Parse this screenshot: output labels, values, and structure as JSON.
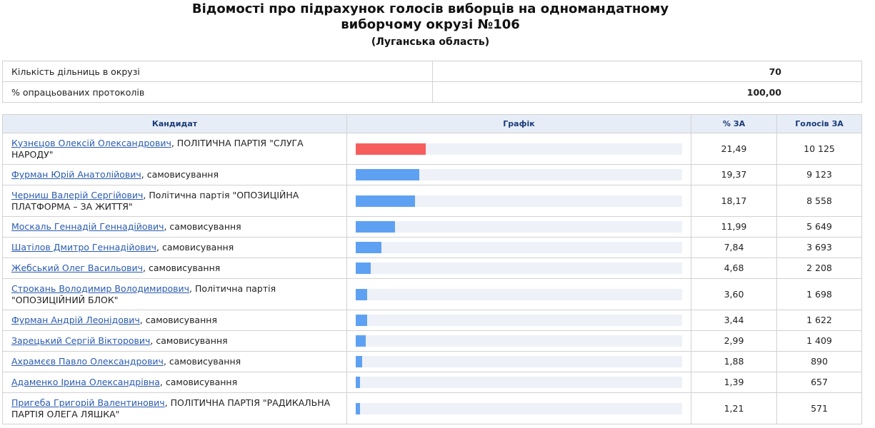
{
  "header": {
    "title_line1": "Відомості про підрахунок голосів виборців на одномандатному",
    "title_line2": "виборчому окрузі №106",
    "subtitle": "(Луганська область)"
  },
  "summary": {
    "rows": [
      [
        "Кількість дільниць в окрузі",
        "70"
      ],
      [
        "% опрацьованих протоколів",
        "100,00"
      ]
    ]
  },
  "table": {
    "columns": [
      "Кандидат",
      "Графік",
      "% ЗА",
      "Голосів ЗА"
    ],
    "rows": [
      {
        "name": "Кузнєцов Олексій Олександрович",
        "affiliation": ", ПОЛІТИЧНА ПАРТІЯ \"СЛУГА НАРОДУ\"",
        "percent": {
          "value": 21.49,
          "label": "21,49"
        },
        "votes": "10 125",
        "color": "#f65e5e"
      },
      {
        "name": "Фурман Юрій Анатолійович",
        "affiliation": ", самовисування",
        "percent": {
          "value": 19.37,
          "label": "19,37"
        },
        "votes": "9 123",
        "color": "#5ea1f3"
      },
      {
        "name": "Черниш Валерій Сергійович",
        "affiliation": ", Політична партія \"ОПОЗИЦІЙНА ПЛАТФОРМА – ЗА ЖИТТЯ\"",
        "percent": {
          "value": 18.17,
          "label": "18,17"
        },
        "votes": "8 558",
        "color": "#5ea1f3"
      },
      {
        "name": "Москаль Геннадій Геннадійович",
        "affiliation": ", самовисування",
        "percent": {
          "value": 11.99,
          "label": "11,99"
        },
        "votes": "5 649",
        "color": "#5ea1f3"
      },
      {
        "name": "Шатілов Дмитро Геннадійович",
        "affiliation": ", самовисування",
        "percent": {
          "value": 7.84,
          "label": "7,84"
        },
        "votes": "3 693",
        "color": "#5ea1f3"
      },
      {
        "name": "Жебський Олег Васильович",
        "affiliation": ", самовисування",
        "percent": {
          "value": 4.68,
          "label": "4,68"
        },
        "votes": "2 208",
        "color": "#5ea1f3"
      },
      {
        "name": "Строкань Володимир Володимирович",
        "affiliation": ", Політична партія \"ОПОЗИЦІЙНИЙ БЛОК\"",
        "percent": {
          "value": 3.6,
          "label": "3,60"
        },
        "votes": "1 698",
        "color": "#5ea1f3"
      },
      {
        "name": "Фурман Андрій Леонідович",
        "affiliation": ", самовисування",
        "percent": {
          "value": 3.44,
          "label": "3,44"
        },
        "votes": "1 622",
        "color": "#5ea1f3"
      },
      {
        "name": "Зарецький Сергій Вікторович",
        "affiliation": ", самовисування",
        "percent": {
          "value": 2.99,
          "label": "2,99"
        },
        "votes": "1 409",
        "color": "#5ea1f3"
      },
      {
        "name": "Ахрамєєв Павло Олександрович",
        "affiliation": ", самовисування",
        "percent": {
          "value": 1.88,
          "label": "1,88"
        },
        "votes": "890",
        "color": "#5ea1f3"
      },
      {
        "name": "Адаменко Ірина Олександрівна",
        "affiliation": ", самовисування",
        "percent": {
          "value": 1.39,
          "label": "1,39"
        },
        "votes": "657",
        "color": "#5ea1f3"
      },
      {
        "name": "Пригеба Григорій Валентинович",
        "affiliation": ", ПОЛІТИЧНА ПАРТІЯ \"РАДИКАЛЬНА ПАРТІЯ ОЛЕГА ЛЯШКА\"",
        "percent": {
          "value": 1.21,
          "label": "1,21"
        },
        "votes": "571",
        "color": "#5ea1f3"
      }
    ]
  }
}
